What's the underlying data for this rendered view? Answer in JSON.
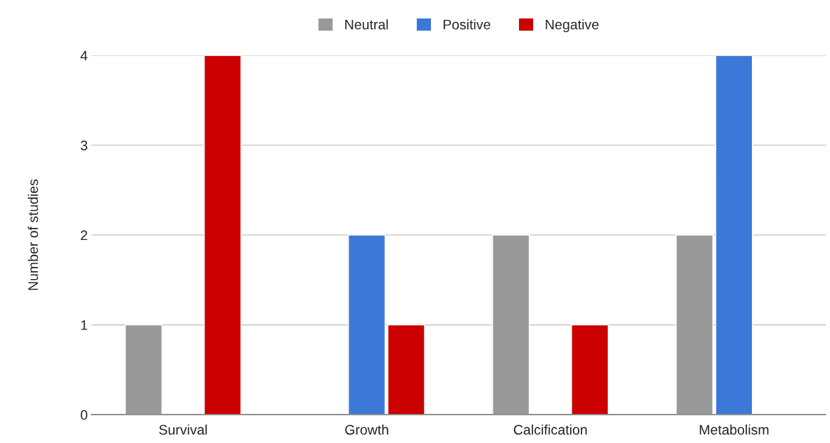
{
  "chart_data": {
    "type": "bar",
    "ylabel": "Number of studies",
    "categories": [
      "Survival",
      "Growth",
      "Calcification",
      "Metabolism"
    ],
    "series": [
      {
        "name": "Neutral",
        "color": "#999999",
        "values": [
          1,
          null,
          2,
          2
        ]
      },
      {
        "name": "Positive",
        "color": "#3c78d8",
        "values": [
          null,
          2,
          null,
          4
        ]
      },
      {
        "name": "Negative",
        "color": "#cc0000",
        "values": [
          4,
          1,
          1,
          null
        ]
      }
    ],
    "ylim": [
      0,
      4
    ],
    "yticks": [
      0,
      1,
      2,
      3,
      4
    ],
    "grid": "y",
    "legend": "top"
  }
}
